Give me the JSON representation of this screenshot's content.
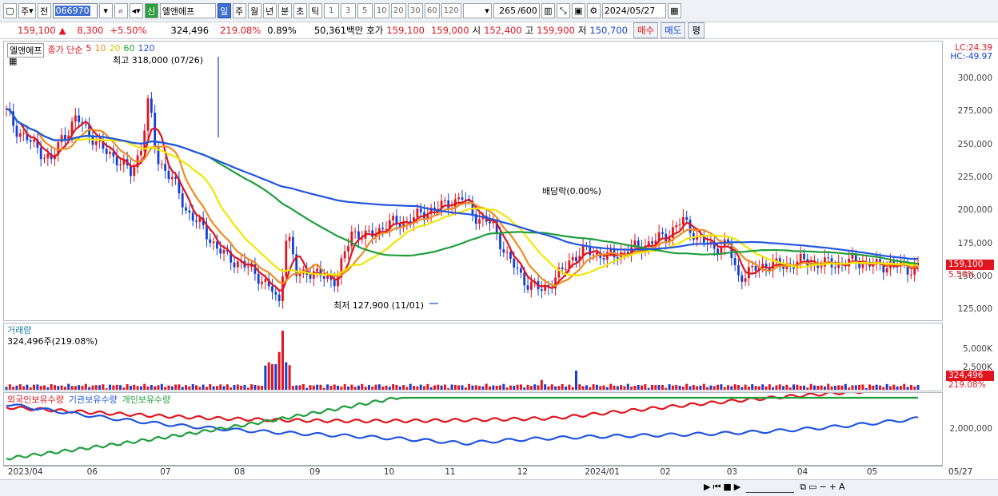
{
  "toolbar": {
    "jong": "주",
    "jeon": "전",
    "code": "066970",
    "badge_sin": "신",
    "name": "엘앤에프",
    "periods": [
      "일",
      "주",
      "월",
      "년",
      "분",
      "초",
      "틱"
    ],
    "nums": [
      "1",
      "3",
      "5",
      "10",
      "20",
      "30",
      "60",
      "120"
    ],
    "count": "265",
    "total": "/600",
    "date": "2024/05/27"
  },
  "quote": {
    "price": "159,100",
    "up": "▲",
    "change": "8,300",
    "pct": "+5.50%",
    "volume": "324,496",
    "vol_ratio": "219.08%",
    "turnover": "0.89%",
    "amount": "50,361백만",
    "hoga_label": "호가",
    "hoga1": "159,100",
    "hoga2": "159,000",
    "open_label": "시",
    "open": "152,400",
    "high_label": "고",
    "high": "159,900",
    "low_label": "저",
    "low": "150,700",
    "buy": "매수",
    "sell": "매도",
    "avg": "평"
  },
  "legend": {
    "name": "엘앤에프",
    "ma_label": "종가 단순",
    "ma": [
      "5",
      "10",
      "20",
      "60",
      "120"
    ],
    "ma_colors": [
      "#e0151f",
      "#f08c1e",
      "#f2e600",
      "#1f9e3c",
      "#2255e0"
    ]
  },
  "annotations": {
    "high": "최고 318,000 (07/26)",
    "low": "최저 127,900 (11/01)",
    "dividend": "배당락(0.00%)"
  },
  "price_axis": [
    "300,000",
    "275,000",
    "250,000",
    "225,000",
    "200,000",
    "175,000",
    "150,000",
    "125,000"
  ],
  "price_axis_values": [
    300000,
    275000,
    250000,
    225000,
    200000,
    175000,
    150000,
    125000
  ],
  "lc": "LC:24.39",
  "hc": "HC:-49.97",
  "price_badge": "159,100",
  "pct_badge": "5.50%",
  "volume_panel": {
    "title": "거래량",
    "value": "324,496주(219.08%)",
    "axis": [
      "5,000K",
      "2,500K"
    ],
    "badge": "324,496",
    "pct": "219.08%"
  },
  "holding_panel": {
    "series": [
      "외국인보유수량",
      "기관보유수량",
      "개인보유수량"
    ],
    "axis": "2,000,000"
  },
  "dates": [
    "2023/04",
    "06",
    "07",
    "08",
    "09",
    "10",
    "11",
    "12",
    "2024/01",
    "02",
    "03",
    "04",
    "05",
    "05/27"
  ],
  "date_pos": [
    0.5,
    8.9,
    16.7,
    24.6,
    32.6,
    40.5,
    47.0,
    54.7,
    61.9,
    69.9,
    77.0,
    84.5,
    91.9,
    100.6
  ]
}
